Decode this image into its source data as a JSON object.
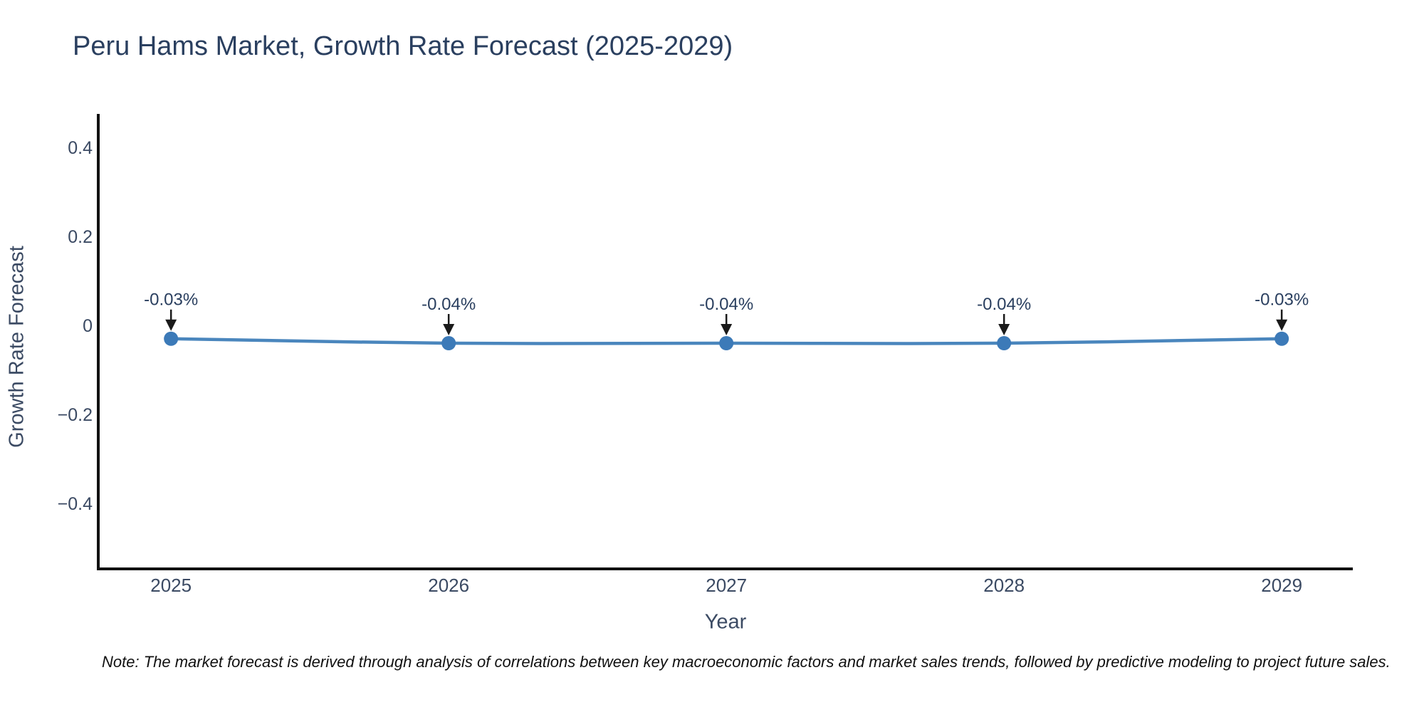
{
  "title": "Peru Hams Market, Growth Rate Forecast (2025-2029)",
  "note": "Note: The market forecast is derived through analysis of correlations between key macroeconomic factors and market sales trends, followed by predictive modeling to project future sales.",
  "chart_data": {
    "type": "line",
    "title": "Peru Hams Market, Growth Rate Forecast (2025-2029)",
    "xlabel": "Year",
    "ylabel": "Growth Rate Forecast",
    "x": [
      2025,
      2026,
      2027,
      2028,
      2029
    ],
    "series": [
      {
        "name": "Growth Rate Forecast",
        "values": [
          -0.03,
          -0.04,
          -0.04,
          -0.04,
          -0.03
        ]
      }
    ],
    "point_labels": [
      "-0.03%",
      "-0.04%",
      "-0.04%",
      "-0.04%",
      "-0.03%"
    ],
    "y_ticks": [
      0.4,
      0.2,
      0,
      -0.2,
      -0.4
    ],
    "y_tick_labels": [
      "0.4",
      "0.2",
      "0",
      "−0.2",
      "−0.4"
    ],
    "x_tick_labels": [
      "2025",
      "2026",
      "2027",
      "2028",
      "2029"
    ],
    "xlim": [
      2024.738,
      2029.256
    ],
    "ylim": [
      -0.547,
      0.475
    ],
    "grid": false,
    "legend": "none",
    "line_color": "#4a86bd",
    "marker_color": "#3c7ab8",
    "axis_color": "#111111",
    "tick_color": "#3b4a63",
    "annotation_text_color": "#2a3f5f",
    "arrow_color": "#1a1a1a"
  }
}
